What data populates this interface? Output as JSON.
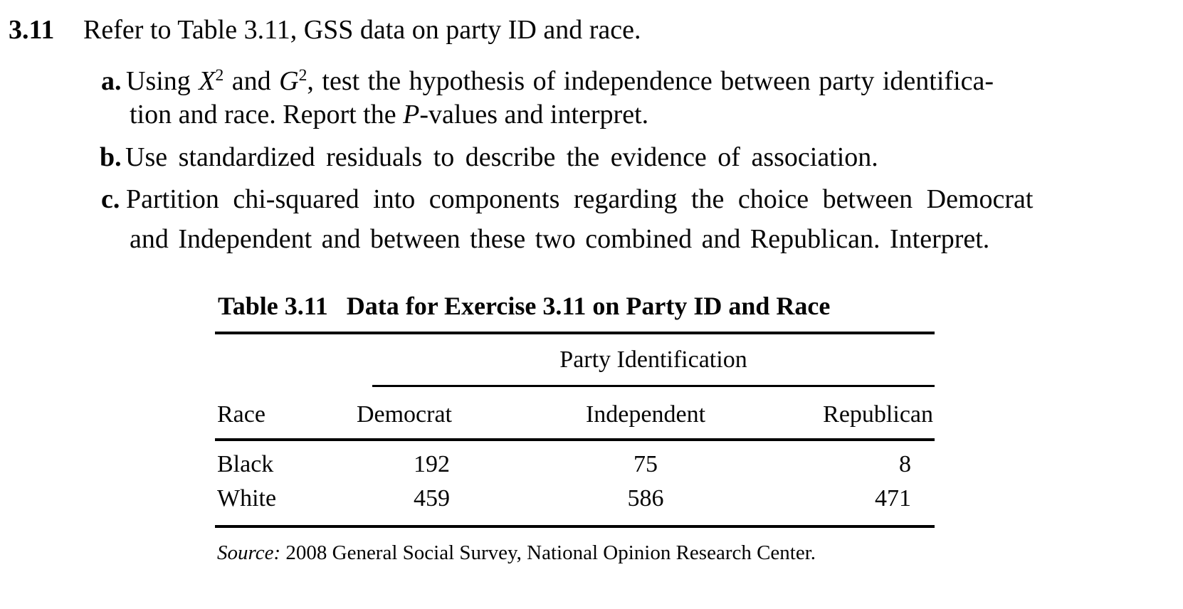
{
  "page": {
    "background": "#ffffff",
    "text_color": "#050505"
  },
  "exercise": {
    "number": "3.11",
    "item_labels": {
      "a": "a.",
      "b": "b.",
      "c": "c."
    },
    "lines": {
      "intro": [
        [
          "Refer to Table 3.11, GSS data on party ID and race.",
          ""
        ]
      ],
      "a1": [
        [
          "Using ",
          ""
        ],
        [
          "X",
          "i"
        ],
        [
          "2",
          "sup"
        ],
        [
          " and ",
          ""
        ],
        [
          "G",
          "i"
        ],
        [
          "2",
          "sup"
        ],
        [
          ", test the hypothesis of independence between party identifica-",
          ""
        ]
      ],
      "a2": [
        [
          "tion and race. Report the ",
          ""
        ],
        [
          "P",
          "i"
        ],
        [
          "-values and interpret.",
          ""
        ]
      ],
      "b": [
        [
          "Use standardized residuals to describe the evidence of association.",
          ""
        ]
      ],
      "c1": [
        [
          "Partition chi-squared into components regarding the choice between Democrat",
          ""
        ]
      ],
      "c2": [
        [
          "and Independent and between these two combined and Republican. Interpret.",
          ""
        ]
      ]
    }
  },
  "table": {
    "label": "Table 3.11",
    "caption": "Data for Exercise 3.11 on Party ID and Race",
    "spanning_header": "Party Identification",
    "row_header": "Race",
    "column_headers": [
      "Democrat",
      "Independent",
      "Republican"
    ],
    "rows": [
      {
        "race": "Black",
        "democrat": "192",
        "independent": "75",
        "republican": "8"
      },
      {
        "race": "White",
        "democrat": "459",
        "independent": "586",
        "republican": "471"
      }
    ],
    "source_label": "Source:",
    "source_text": "2008 General Social Survey, National Opinion Research Center."
  }
}
